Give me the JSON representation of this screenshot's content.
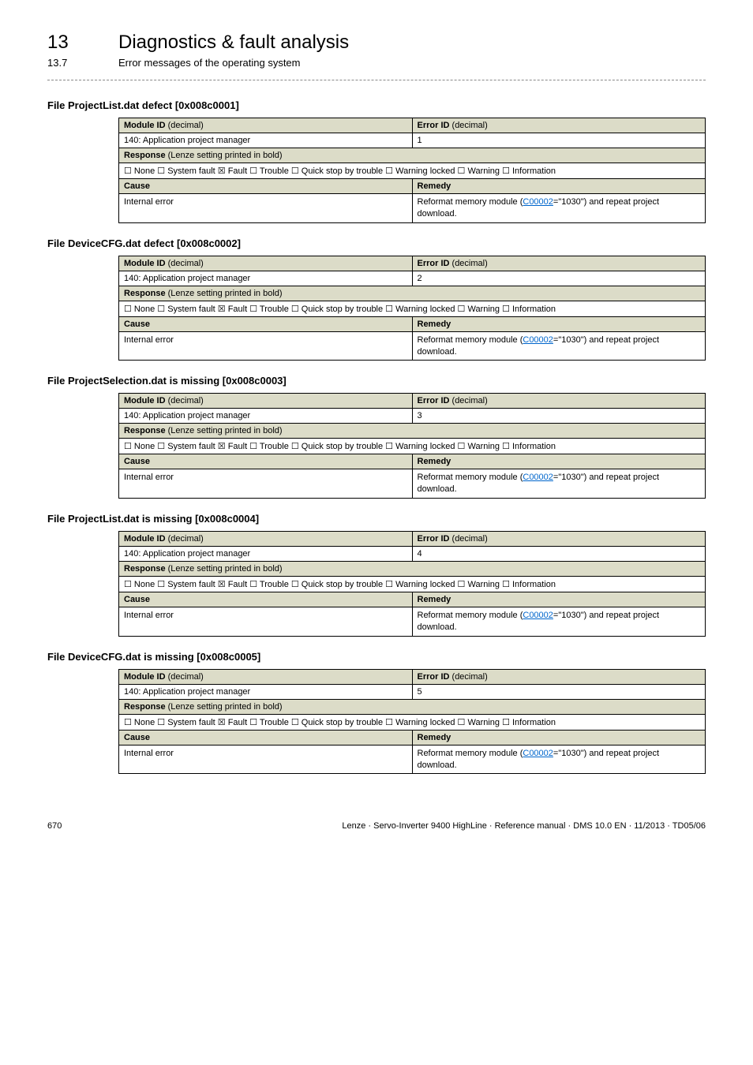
{
  "header": {
    "chapter_num": "13",
    "chapter_title": "Diagnostics & fault analysis",
    "sub_num": "13.7",
    "sub_title": "Error messages of the operating system"
  },
  "sections": [
    {
      "title": "File ProjectList.dat defect [0x008c0001]",
      "error_id": "1"
    },
    {
      "title": "File DeviceCFG.dat defect [0x008c0002]",
      "error_id": "2"
    },
    {
      "title": "File ProjectSelection.dat is missing [0x008c0003]",
      "error_id": "3"
    },
    {
      "title": "File ProjectList.dat is missing [0x008c0004]",
      "error_id": "4"
    },
    {
      "title": "File DeviceCFG.dat is missing [0x008c0005]",
      "error_id": "5"
    }
  ],
  "table_labels": {
    "module_id_label": "Module ID",
    "error_id_label": "Error ID",
    "decimal_suffix": " (decimal)",
    "module_id_value": "140: Application project manager",
    "response_label": "Response",
    "response_suffix": " (Lenze setting printed in bold)",
    "response_options": "☐ None  ☐ System fault  ☒ Fault  ☐ Trouble  ☐ Quick stop by trouble  ☐ Warning locked  ☐ Warning  ☐ Information",
    "cause_label": "Cause",
    "remedy_label": "Remedy",
    "cause_value": "Internal error",
    "remedy_prefix": "Reformat memory module (",
    "remedy_link": "C00002",
    "remedy_suffix": "=\"1030\") and repeat project download."
  },
  "footer": {
    "page": "670",
    "info": "Lenze · Servo-Inverter 9400 HighLine · Reference manual · DMS 10.0 EN · 11/2013 · TD05/06"
  }
}
